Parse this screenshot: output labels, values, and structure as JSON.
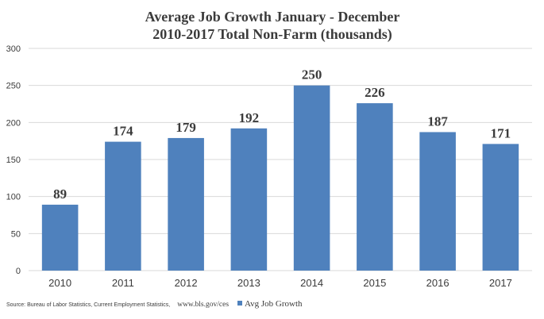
{
  "chart_data": {
    "type": "bar",
    "title": "Average Job Growth January - December",
    "subtitle": "2010-2017 Total Non-Farm (thousands)",
    "categories": [
      "2010",
      "2011",
      "2012",
      "2013",
      "2014",
      "2015",
      "2016",
      "2017"
    ],
    "series": [
      {
        "name": "Avg Job Growth",
        "values": [
          89,
          174,
          179,
          192,
          250,
          226,
          187,
          171
        ]
      }
    ],
    "ylim": [
      0,
      300
    ],
    "yticks": [
      "0",
      "50",
      "100",
      "150",
      "200",
      "250",
      "300"
    ],
    "grid": true,
    "legend": "bottom",
    "bar_color": "#4f81bd",
    "grid_color": "#d9d9d9"
  },
  "source": {
    "text": "Source: Bureau of Labor Statistics, Current Employment Statistics,",
    "url": "www.bls.gov/ces"
  }
}
